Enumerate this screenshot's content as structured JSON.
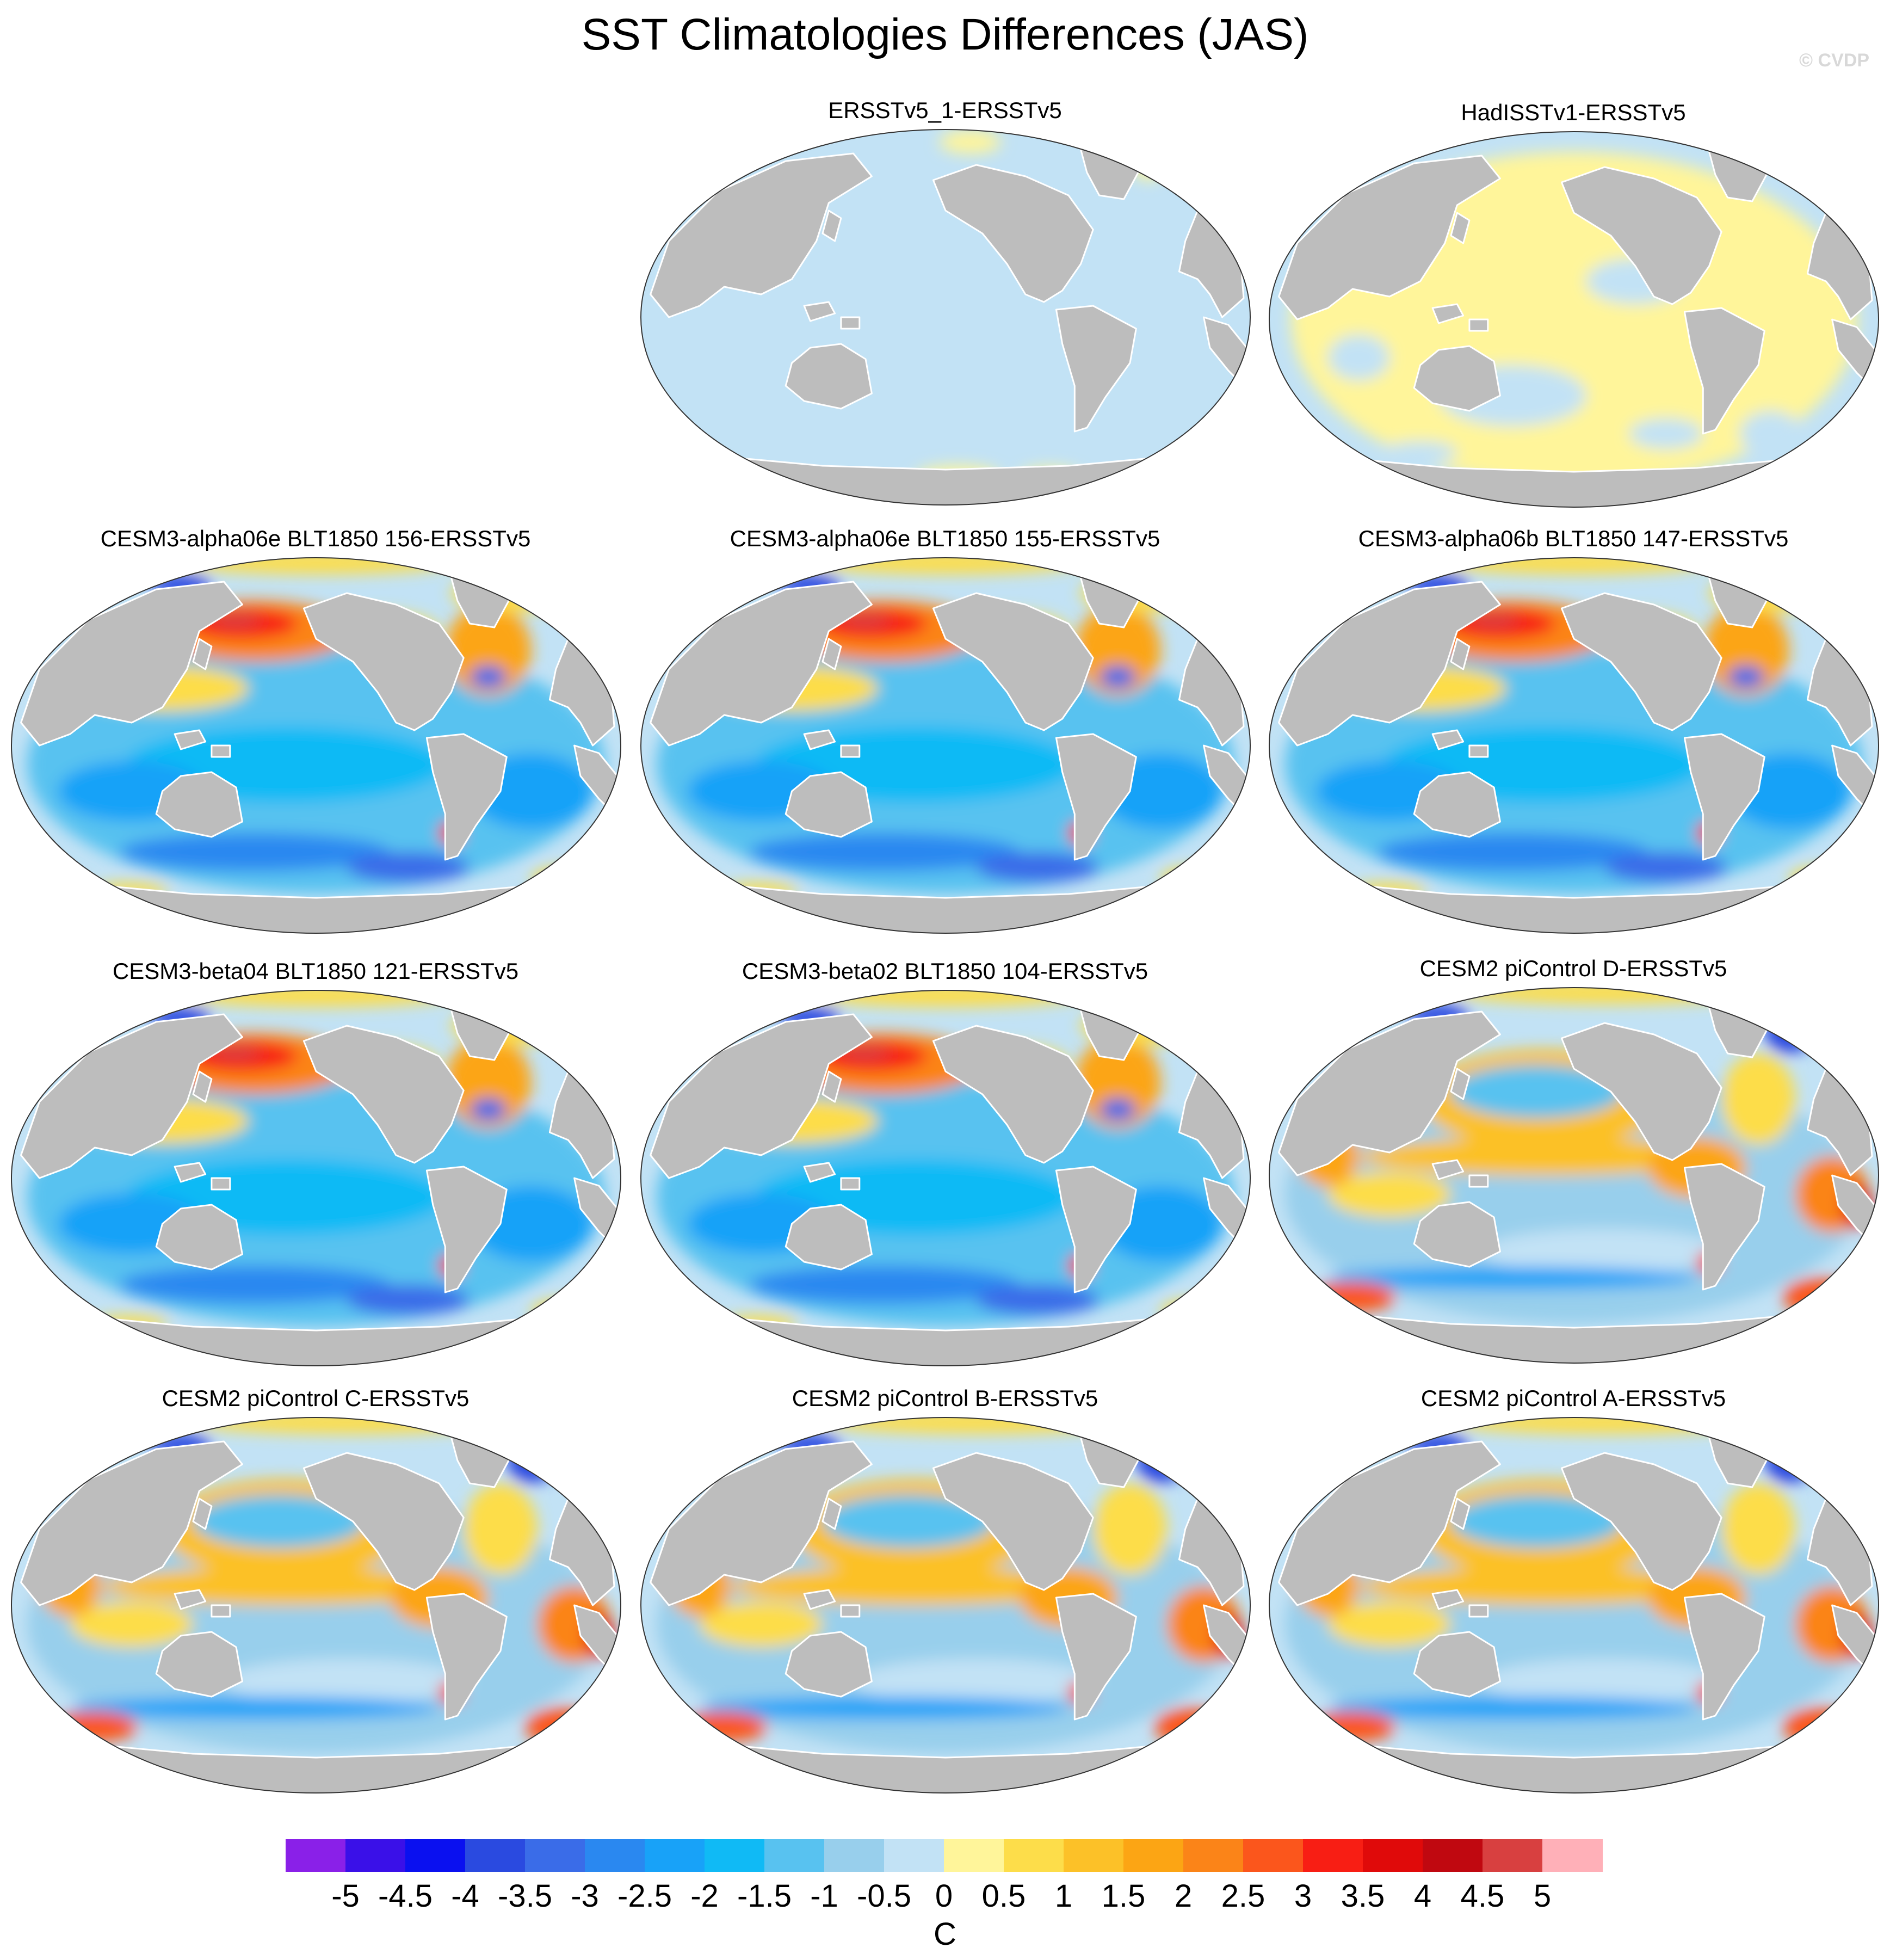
{
  "title": "SST Climatologies Differences (JAS)",
  "credit": "© CVDP",
  "colorbar": {
    "units": "C",
    "labels": [
      "-5",
      "-4.5",
      "-4",
      "-3.5",
      "-3",
      "-2.5",
      "-2",
      "-1.5",
      "-1",
      "-0.5",
      "0",
      "0.5",
      "1",
      "1.5",
      "2",
      "2.5",
      "3",
      "3.5",
      "4",
      "4.5",
      "5"
    ],
    "colors": [
      "#8a20e8",
      "#3a10e8",
      "#0a10f0",
      "#2a4ae0",
      "#3a6ce8",
      "#2a88f0",
      "#18a2f8",
      "#10baf5",
      "#58c2f0",
      "#98cfec",
      "#c2e2f5",
      "#fff59a",
      "#fddd4a",
      "#fcc128",
      "#fca514",
      "#fb8418",
      "#fb561c",
      "#f81e14",
      "#e00a0a",
      "#c00810",
      "#d84040",
      "#ffb0b8"
    ],
    "value_range": [
      -5,
      5
    ],
    "interval": 0.5
  },
  "panels": [
    {
      "id": "p1",
      "title": "ERSSTv5_1-ERSSTv5",
      "style": "zero"
    },
    {
      "id": "p2",
      "title": "HadISSTv1-ERSSTv5",
      "style": "had"
    },
    {
      "id": "p3",
      "title": "CESM3-alpha06e BLT1850 156-ERSSTv5",
      "style": "cool"
    },
    {
      "id": "p4",
      "title": "CESM3-alpha06e BLT1850 155-ERSSTv5",
      "style": "cool"
    },
    {
      "id": "p5",
      "title": "CESM3-alpha06b BLT1850 147-ERSSTv5",
      "style": "cool"
    },
    {
      "id": "p6",
      "title": "CESM3-beta04 BLT1850 121-ERSSTv5",
      "style": "cool"
    },
    {
      "id": "p7",
      "title": "CESM3-beta02 BLT1850 104-ERSSTv5",
      "style": "cool"
    },
    {
      "id": "p8",
      "title": "CESM2 piControl D-ERSSTv5",
      "style": "warm"
    },
    {
      "id": "p9",
      "title": "CESM2 piControl C-ERSSTv5",
      "style": "warm"
    },
    {
      "id": "p10",
      "title": "CESM2 piControl B-ERSSTv5",
      "style": "warm"
    },
    {
      "id": "p11",
      "title": "CESM2 piControl A-ERSSTv5",
      "style": "warm"
    }
  ],
  "map_colors": {
    "land": "#bdbdbd",
    "ocean_zero": "#c2e2f5",
    "ocean_pos_small": "#fff59a"
  }
}
